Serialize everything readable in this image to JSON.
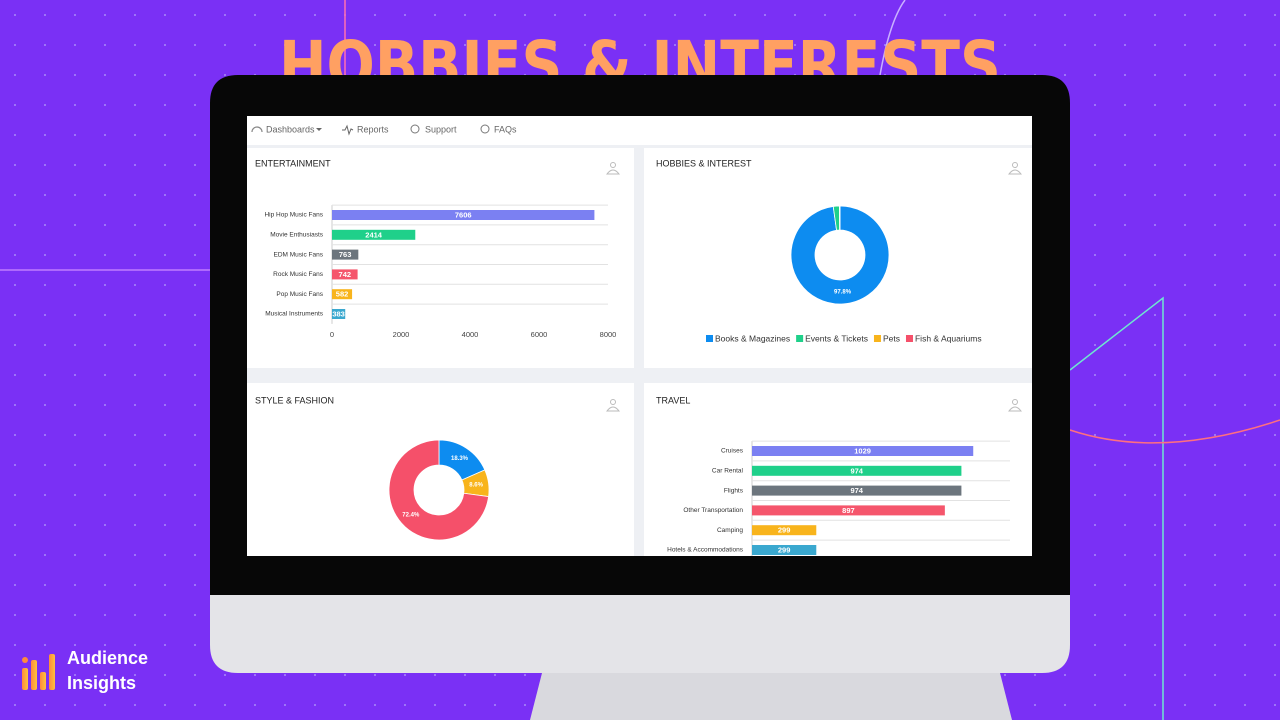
{
  "headline": "HOBBIES & INTERESTS",
  "nav": [
    "Dashboards",
    "Reports",
    "Support",
    "FAQs"
  ],
  "brand": {
    "line1": "Audience",
    "line2": "Insights"
  },
  "chart_data": [
    {
      "type": "bar",
      "title": "ENTERTAINMENT",
      "categories": [
        "Hip Hop Music Fans",
        "Movie Enthusiasts",
        "EDM Music Fans",
        "Rock Music Fans",
        "Pop Music Fans",
        "Musical Instruments"
      ],
      "values": [
        7606,
        2414,
        763,
        742,
        582,
        383
      ],
      "colors": [
        "#7b80f2",
        "#1fd08a",
        "#6c757d",
        "#f5566c",
        "#f8b41c",
        "#3aa8cf"
      ],
      "xlim": [
        0,
        8000
      ],
      "xticks": [
        0,
        2000,
        4000,
        6000,
        8000
      ]
    },
    {
      "type": "donut",
      "title": "HOBBIES & INTEREST",
      "categories": [
        "Books & Magazines",
        "Events & Tickets",
        "Pets",
        "Fish & Aquariums"
      ],
      "values": [
        97.8,
        2.0,
        0.1,
        0.1
      ],
      "value_labels": [
        "97.8%",
        null,
        null,
        null
      ],
      "colors": [
        "#0d8cf0",
        "#1fd08a",
        "#f8b41c",
        "#f5506a"
      ],
      "legend": "bottom"
    },
    {
      "type": "donut",
      "title": "STYLE & FASHION",
      "values": [
        18.3,
        8.6,
        72.4
      ],
      "value_labels": [
        "18.3%",
        "8.6%",
        "72.4%"
      ],
      "colors": [
        "#0d8cf0",
        "#f8b41c",
        "#f5506a"
      ]
    },
    {
      "type": "bar",
      "title": "TRAVEL",
      "categories": [
        "Cruises",
        "Car Rental",
        "Flights",
        "Other Transportation",
        "Camping",
        "Hotels & Accommodations"
      ],
      "values": [
        1029,
        974,
        974,
        897,
        299,
        299
      ],
      "colors": [
        "#7b80f2",
        "#1fd08a",
        "#6c757d",
        "#f5566c",
        "#f8b41c",
        "#3aa8cf"
      ],
      "xlim": [
        0,
        1200
      ]
    }
  ]
}
